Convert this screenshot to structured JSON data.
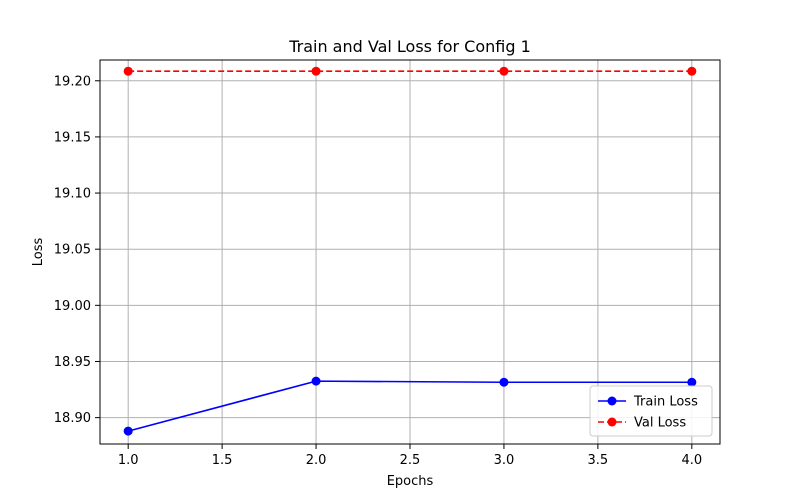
{
  "chart_data": {
    "type": "line",
    "title": "Train and Val Loss for Config 1",
    "xlabel": "Epochs",
    "ylabel": "Loss",
    "x": [
      1,
      2,
      3,
      4
    ],
    "xlim": [
      0.85,
      4.15
    ],
    "ylim": [
      18.8765,
      19.2185
    ],
    "xticks": [
      1.0,
      1.5,
      2.0,
      2.5,
      3.0,
      3.5,
      4.0
    ],
    "xtick_labels": [
      "1.0",
      "1.5",
      "2.0",
      "2.5",
      "3.0",
      "3.5",
      "4.0"
    ],
    "yticks": [
      18.9,
      18.95,
      19.0,
      19.05,
      19.1,
      19.15,
      19.2
    ],
    "ytick_labels": [
      "18.90",
      "18.95",
      "19.00",
      "19.05",
      "19.10",
      "19.15",
      "19.20"
    ],
    "grid": true,
    "legend_position": "bottom-right",
    "series": [
      {
        "name": "Train Loss",
        "values": [
          18.888,
          18.9325,
          18.9315,
          18.9315
        ],
        "color": "#0000ff",
        "line_style": "solid",
        "marker": "circle"
      },
      {
        "name": "Val Loss",
        "values": [
          19.2085,
          19.2085,
          19.2085,
          19.2085
        ],
        "color": "#ff0000",
        "line_style": "dashed",
        "marker": "circle"
      }
    ]
  }
}
